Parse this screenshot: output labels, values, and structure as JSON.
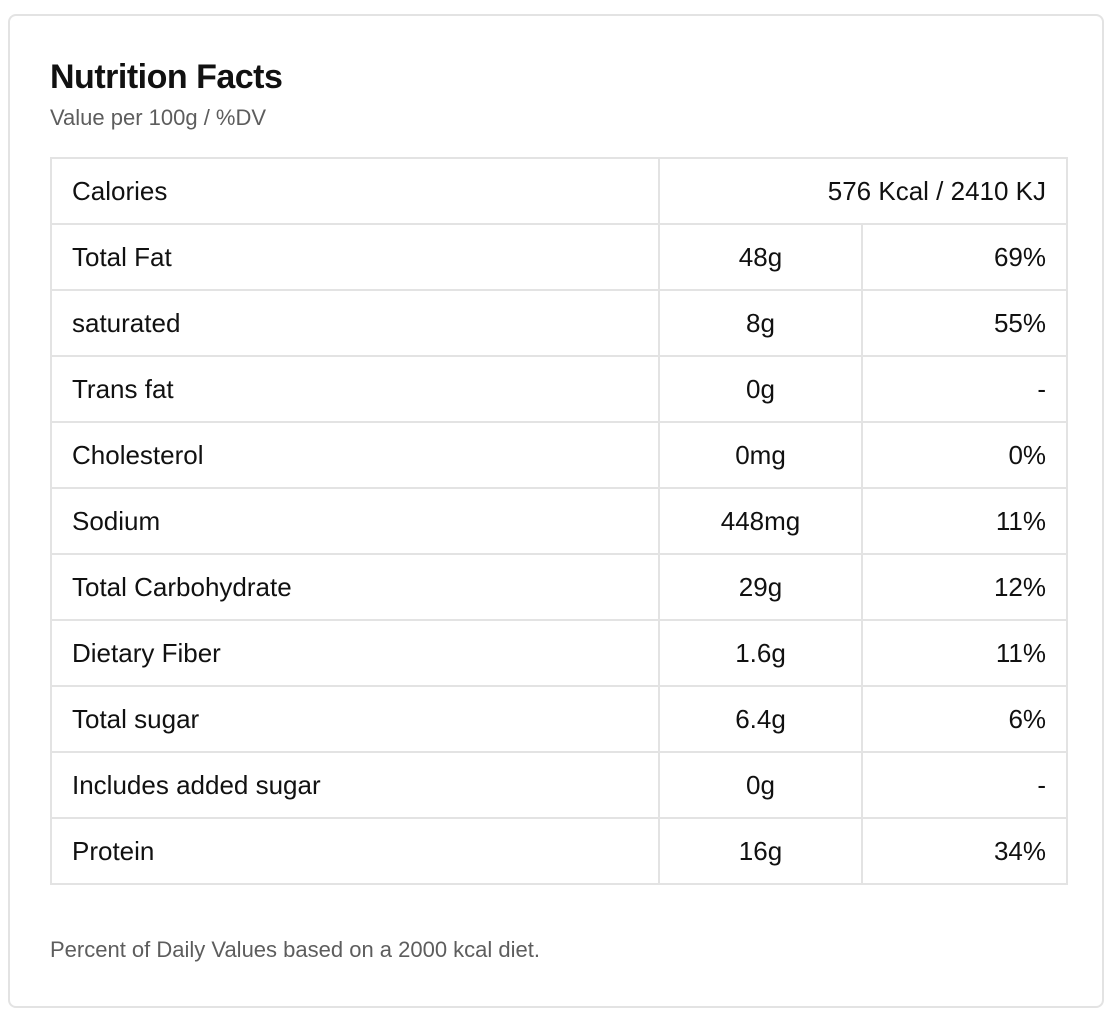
{
  "title": "Nutrition Facts",
  "subtitle": "Value per 100g / %DV",
  "calories": {
    "label": "Calories",
    "value": "576 Kcal / 2410 KJ"
  },
  "rows": [
    {
      "name": "Total Fat",
      "amount": "48g",
      "dv": "69%"
    },
    {
      "name": "saturated",
      "amount": "8g",
      "dv": "55%"
    },
    {
      "name": "Trans fat",
      "amount": "0g",
      "dv": "-"
    },
    {
      "name": "Cholesterol",
      "amount": "0mg",
      "dv": "0%"
    },
    {
      "name": "Sodium",
      "amount": "448mg",
      "dv": "11%"
    },
    {
      "name": "Total Carbohydrate",
      "amount": "29g",
      "dv": "12%"
    },
    {
      "name": "Dietary Fiber",
      "amount": "1.6g",
      "dv": "11%"
    },
    {
      "name": "Total sugar",
      "amount": "6.4g",
      "dv": "6%"
    },
    {
      "name": "Includes added sugar",
      "amount": "0g",
      "dv": "-"
    },
    {
      "name": "Protein",
      "amount": "16g",
      "dv": "34%"
    }
  ],
  "footnote": "Percent of Daily Values based on a 2000 kcal diet.",
  "colors": {
    "border": "#e3e3e3",
    "text": "#111111",
    "muted_text": "#5d5d5d",
    "background": "#ffffff"
  }
}
